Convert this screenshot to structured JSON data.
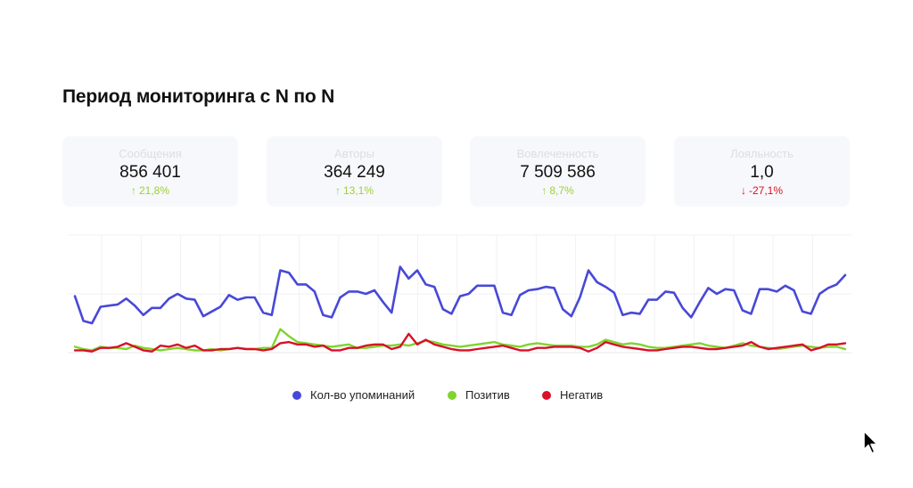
{
  "title": "Период мониторинга с N по N",
  "colors": {
    "positive": "#9bd136",
    "negative": "#e0101e",
    "label": "#dcdde2",
    "card_bg": "#f7f8fb"
  },
  "cards": [
    {
      "label": "Сообщения",
      "value": "856 401",
      "delta": "21,8%",
      "trend": "up"
    },
    {
      "label": "Авторы",
      "value": "364 249",
      "delta": "13,1%",
      "trend": "up"
    },
    {
      "label": "Вовлеченность",
      "value": "7 509 586",
      "delta": "8,7%",
      "trend": "up"
    },
    {
      "label": "Лояльность",
      "value": "1,0",
      "delta": "-27,1%",
      "trend": "down"
    }
  ],
  "chart_data": {
    "type": "line",
    "grid": true,
    "x_tick_labels_visible": false,
    "y_tick_labels_visible": false,
    "ylim": [
      0,
      100
    ],
    "legend_placement": "bottom",
    "series": [
      {
        "name": "Кол-во упоминаний",
        "color": "#4848d8",
        "values": [
          48,
          27,
          25,
          39,
          40,
          41,
          46,
          40,
          32,
          38,
          38,
          46,
          50,
          46,
          45,
          31,
          35,
          39,
          49,
          45,
          47,
          47,
          34,
          32,
          70,
          68,
          58,
          58,
          52,
          32,
          30,
          47,
          52,
          52,
          50,
          53,
          43,
          34,
          73,
          63,
          70,
          58,
          56,
          37,
          33,
          48,
          50,
          57,
          57,
          57,
          34,
          32,
          49,
          53,
          54,
          56,
          55,
          37,
          31,
          47,
          70,
          60,
          56,
          51,
          32,
          34,
          33,
          45,
          45,
          52,
          51,
          38,
          30,
          43,
          55,
          50,
          54,
          53,
          36,
          33,
          54,
          54,
          52,
          57,
          53,
          35,
          33,
          50,
          55,
          58,
          66
        ]
      },
      {
        "name": "Позитив",
        "color": "#7fd42e",
        "values": [
          5,
          3,
          2,
          5,
          4,
          4,
          3,
          6,
          4,
          3,
          2,
          3,
          4,
          3,
          2,
          2,
          3,
          2,
          3,
          4,
          3,
          3,
          4,
          4,
          20,
          14,
          9,
          8,
          7,
          6,
          5,
          6,
          7,
          4,
          4,
          5,
          6,
          6,
          7,
          6,
          8,
          10,
          9,
          7,
          6,
          5,
          6,
          7,
          8,
          9,
          7,
          6,
          5,
          7,
          8,
          7,
          6,
          6,
          6,
          5,
          5,
          7,
          11,
          9,
          7,
          8,
          7,
          5,
          4,
          4,
          5,
          6,
          7,
          8,
          6,
          5,
          4,
          6,
          8,
          6,
          5,
          4,
          3,
          4,
          5,
          6,
          5,
          4,
          5,
          5,
          3
        ]
      },
      {
        "name": "Негатив",
        "color": "#d81028",
        "values": [
          2,
          2,
          1,
          4,
          4,
          5,
          8,
          5,
          2,
          1,
          6,
          5,
          7,
          4,
          6,
          2,
          2,
          3,
          3,
          4,
          3,
          3,
          2,
          3,
          8,
          9,
          7,
          7,
          5,
          6,
          2,
          2,
          4,
          4,
          6,
          7,
          7,
          3,
          5,
          16,
          7,
          11,
          7,
          5,
          3,
          2,
          2,
          3,
          4,
          5,
          6,
          4,
          2,
          2,
          4,
          4,
          5,
          5,
          5,
          4,
          1,
          4,
          9,
          7,
          5,
          4,
          3,
          2,
          2,
          3,
          4,
          5,
          5,
          4,
          3,
          3,
          4,
          5,
          6,
          9,
          5,
          3,
          4,
          5,
          6,
          7,
          2,
          4,
          7,
          7,
          8
        ]
      }
    ]
  }
}
